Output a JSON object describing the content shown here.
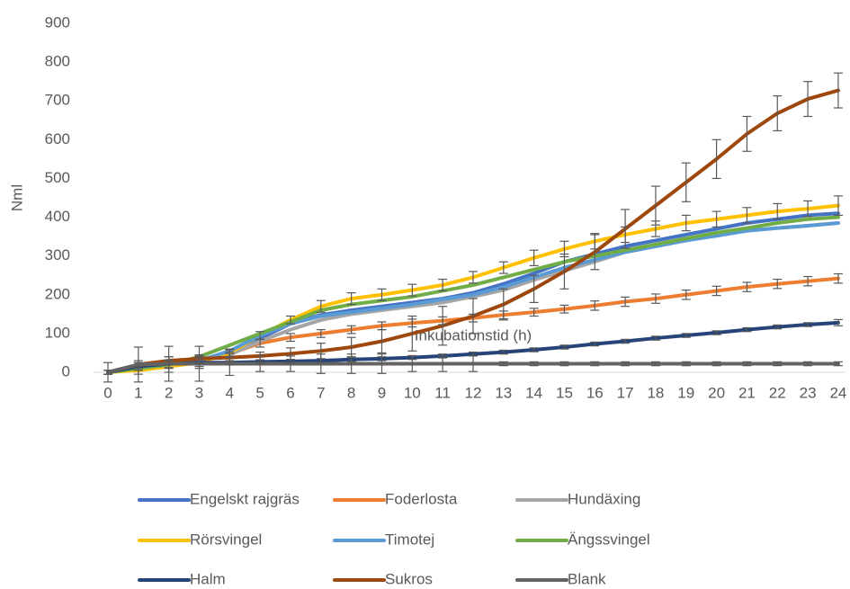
{
  "chart_data": {
    "type": "line",
    "y_label": "Nml",
    "x_label": "Inkubationstid (h)",
    "categories": [
      "0",
      "1",
      "2",
      "3",
      "4",
      "5",
      "6",
      "7",
      "8",
      "9",
      "10",
      "11",
      "12",
      "13",
      "14",
      "15",
      "16",
      "17",
      "18",
      "19",
      "20",
      "21",
      "22",
      "23",
      "24"
    ],
    "ylim": [
      0,
      900
    ],
    "yticks": [
      0,
      100,
      200,
      300,
      400,
      500,
      600,
      700,
      800,
      900
    ],
    "legend": "bottom",
    "series": [
      {
        "name": "Engelskt rajgräs",
        "color": "#4472c4",
        "values": [
          0,
          12,
          22,
          32,
          50,
          88,
          125,
          148,
          160,
          170,
          180,
          190,
          205,
          228,
          255,
          285,
          305,
          325,
          340,
          355,
          370,
          385,
          395,
          405,
          410
        ]
      },
      {
        "name": "Foderlosta",
        "color": "#ed7d31",
        "values": [
          0,
          15,
          25,
          32,
          48,
          75,
          90,
          100,
          110,
          120,
          127,
          133,
          140,
          148,
          155,
          163,
          172,
          182,
          190,
          200,
          210,
          220,
          228,
          235,
          242
        ],
        "errors": [
          5,
          10,
          15,
          10,
          10,
          10,
          10,
          10,
          10,
          10,
          10,
          10,
          10,
          10,
          10,
          10,
          12,
          12,
          12,
          12,
          12,
          12,
          12,
          12,
          12
        ]
      },
      {
        "name": "Hundäxing",
        "color": "#a5a5a5",
        "values": [
          0,
          10,
          20,
          30,
          45,
          80,
          110,
          135,
          150,
          160,
          170,
          180,
          195,
          212,
          238,
          262,
          285,
          310,
          325,
          340,
          355,
          365,
          372,
          378,
          385
        ]
      },
      {
        "name": "Rörsvingel",
        "color": "#ffc000",
        "values": [
          0,
          5,
          15,
          25,
          50,
          95,
          135,
          170,
          190,
          200,
          212,
          225,
          245,
          270,
          295,
          318,
          338,
          355,
          370,
          385,
          395,
          405,
          415,
          422,
          430
        ],
        "errors": [
          5,
          10,
          15,
          15,
          10,
          10,
          10,
          15,
          15,
          15,
          15,
          15,
          15,
          15,
          20,
          20,
          20,
          20,
          20,
          20,
          20,
          20,
          20,
          20,
          25
        ]
      },
      {
        "name": "Timotej",
        "color": "#5b9bd5",
        "values": [
          0,
          10,
          20,
          30,
          55,
          95,
          125,
          145,
          155,
          165,
          175,
          188,
          200,
          220,
          245,
          270,
          290,
          310,
          325,
          340,
          352,
          365,
          372,
          378,
          385
        ]
      },
      {
        "name": "Ängssvingel",
        "color": "#70ad47",
        "values": [
          0,
          10,
          20,
          40,
          70,
          100,
          130,
          160,
          175,
          185,
          195,
          210,
          225,
          245,
          265,
          285,
          300,
          315,
          330,
          345,
          360,
          372,
          385,
          395,
          400
        ]
      },
      {
        "name": "Halm",
        "color": "#264478",
        "values": [
          0,
          15,
          22,
          25,
          25,
          27,
          28,
          30,
          33,
          35,
          38,
          42,
          47,
          52,
          58,
          65,
          73,
          80,
          88,
          95,
          102,
          110,
          117,
          123,
          128
        ],
        "errors": [
          5,
          10,
          10,
          10,
          5,
          5,
          5,
          5,
          5,
          5,
          5,
          5,
          5,
          5,
          5,
          5,
          5,
          5,
          5,
          5,
          5,
          5,
          5,
          5,
          8
        ]
      },
      {
        "name": "Sukros",
        "color": "#9e480e",
        "values": [
          0,
          20,
          30,
          35,
          38,
          42,
          48,
          55,
          65,
          80,
          100,
          120,
          145,
          175,
          215,
          260,
          310,
          370,
          430,
          490,
          550,
          615,
          668,
          705,
          727
        ],
        "errors": [
          5,
          10,
          10,
          10,
          10,
          10,
          15,
          20,
          25,
          30,
          45,
          50,
          45,
          40,
          35,
          45,
          45,
          50,
          50,
          50,
          50,
          45,
          45,
          45,
          45
        ]
      },
      {
        "name": "Blank",
        "color": "#636363",
        "values": [
          0,
          20,
          22,
          22,
          22,
          22,
          22,
          22,
          22,
          22,
          22,
          22,
          22,
          22,
          22,
          22,
          22,
          22,
          22,
          22,
          22,
          22,
          22,
          22,
          22
        ],
        "errors": [
          25,
          45,
          45,
          45,
          30,
          20,
          20,
          25,
          25,
          25,
          20,
          20,
          20,
          5,
          5,
          5,
          5,
          5,
          5,
          5,
          5,
          5,
          5,
          5,
          5
        ]
      }
    ]
  }
}
